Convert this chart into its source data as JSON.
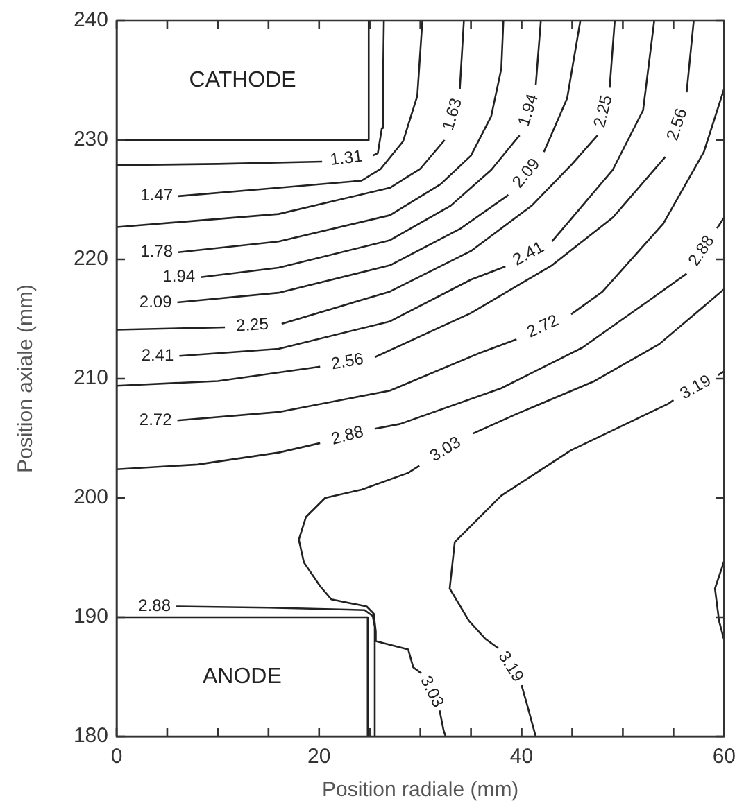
{
  "chart_data": {
    "type": "line",
    "xlabel": "Position radiale (mm)",
    "ylabel": "Position axiale (mm)",
    "xlim": [
      0,
      60
    ],
    "ylim": [
      180,
      240
    ],
    "xticks": [
      0,
      {
        "value": 5,
        "label": null
      },
      {
        "value": 10,
        "label": null
      },
      {
        "value": 15,
        "label": null
      },
      20,
      {
        "value": 25,
        "label": null
      },
      {
        "value": 30,
        "label": null
      },
      {
        "value": 35,
        "label": null
      },
      40,
      {
        "value": 45,
        "label": null
      },
      {
        "value": 50,
        "label": null
      },
      {
        "value": 55,
        "label": null
      },
      60
    ],
    "yticks": [
      180,
      190,
      200,
      210,
      220,
      230,
      240
    ],
    "series": [
      {
        "name": "CATHODE",
        "color": "#222222",
        "x": [
          0,
          24.9,
          24.9
        ],
        "values": [
          230,
          230,
          240
        ]
      },
      {
        "name": "ANODE",
        "color": "#222222",
        "x": [
          0,
          24.8,
          24.8
        ],
        "values": [
          190,
          190,
          180
        ]
      },
      {
        "name": "1.31",
        "color": "#222222",
        "x": [
          0,
          10,
          20.3,
          22.7,
          25.3,
          25.8,
          26.2,
          26.3,
          26.4
        ],
        "values": [
          227.9,
          228.0,
          228.2,
          null,
          228.7,
          228.9,
          231,
          234,
          240
        ]
      },
      {
        "name": "1.47",
        "color": "#222222",
        "x": [
          6.1,
          16,
          24.2,
          26.1,
          28.3,
          29.7,
          30.2
        ],
        "values": [
          225.3,
          226.0,
          226.6,
          227.6,
          229.9,
          233.7,
          240
        ]
      },
      {
        "name": "1.63",
        "color": "#222222",
        "x": [
          0,
          16,
          27,
          30,
          32.4,
          33.2,
          33.9,
          34.3
        ],
        "values": [
          222.7,
          223.8,
          226.0,
          227.6,
          230.0,
          null,
          234.3,
          240
        ]
      },
      {
        "name": "1.78",
        "color": "#222222",
        "x": [
          6.1,
          16,
          27,
          32,
          35,
          37,
          38,
          38.2
        ],
        "values": [
          220.6,
          221.5,
          223.7,
          226.3,
          228.7,
          232,
          236,
          240
        ]
      },
      {
        "name": "1.94",
        "color": "#222222",
        "x": [
          8.3,
          16,
          27,
          33,
          37,
          39.8,
          40.7,
          41.4,
          41.9
        ],
        "values": [
          218.5,
          219.3,
          221.6,
          224.5,
          227.5,
          230.4,
          null,
          234.6,
          240
        ]
      },
      {
        "name": "2.09",
        "color": "#222222",
        "x": [
          6,
          16,
          27,
          34,
          38.7,
          40.5,
          42.2,
          44.5,
          45.8
        ],
        "values": [
          216.4,
          217.2,
          219.5,
          222.6,
          225.4,
          null,
          229.0,
          233.5,
          240
        ]
      },
      {
        "name": "2.25",
        "color": "#222222",
        "x": [
          0,
          10.7,
          13.4,
          16.3,
          27,
          35,
          41,
          45,
          47.5,
          48.1,
          48.7,
          49.2
        ],
        "values": [
          214.1,
          214.3,
          null,
          214.6,
          217.3,
          220.7,
          224.5,
          228,
          230.4,
          null,
          234.4,
          240
        ]
      },
      {
        "name": "2.41",
        "color": "#222222",
        "x": [
          6.2,
          16,
          27,
          35,
          38.4,
          40.7,
          43.0,
          45,
          49,
          52,
          53.1
        ],
        "values": [
          211.9,
          212.5,
          214.8,
          218.3,
          219.4,
          null,
          221.5,
          223.5,
          227.5,
          232.5,
          240
        ]
      },
      {
        "name": "2.56",
        "color": "#222222",
        "x": [
          0,
          10,
          20.1,
          22.8,
          25.5,
          35,
          43,
          49,
          54.2,
          55.4,
          56.3,
          57
        ],
        "values": [
          209.4,
          209.8,
          211.0,
          null,
          211.8,
          215.5,
          219.5,
          223.5,
          228.6,
          null,
          234.0,
          240
        ]
      },
      {
        "name": "2.72",
        "color": "#222222",
        "x": [
          6,
          16,
          27,
          36,
          39.5,
          42.1,
          44.9,
          48,
          54,
          58,
          60
        ],
        "values": [
          206.5,
          207.2,
          209,
          212.2,
          213.3,
          null,
          215.4,
          217.3,
          223,
          229,
          234.3
        ]
      },
      {
        "name": "2.88",
        "color": "#222222",
        "x": [
          0,
          8,
          16,
          20.1,
          22.8,
          25.5,
          28,
          38,
          46,
          53,
          56.3,
          57.8,
          59.3,
          60
        ],
        "values": [
          202.4,
          202.8,
          203.8,
          204.6,
          null,
          205.8,
          206.2,
          209.2,
          212.6,
          216.8,
          218.8,
          null,
          222.6,
          223.5
        ]
      },
      {
        "name": "3.03",
        "color": "#222222",
        "x": [
          60,
          53.6,
          47.2,
          39.4,
          35.2,
          32.5,
          29.9,
          28.8,
          24.2,
          20.6,
          18.7,
          18.0,
          18.5,
          20.1,
          21.2,
          24.7,
          25.4,
          25.6,
          25.6,
          28.8,
          29.3,
          30.1,
          31.1,
          31.9,
          32.3,
          32.5
        ],
        "values": [
          217.5,
          212.9,
          209.8,
          207.0,
          205.4,
          null,
          202.7,
          202.1,
          200.7,
          200.0,
          198.4,
          196.5,
          194.6,
          192.6,
          191.5,
          190.9,
          190.3,
          188.8,
          188.0,
          187.3,
          185.8,
          185.3,
          null,
          182.2,
          180.5,
          180
        ]
      },
      {
        "name": "3.19",
        "color": "#222222",
        "x": [
          60,
          59.4,
          57.2,
          55.0,
          54.5,
          44.9,
          38.0,
          33.4,
          32.9,
          34.8,
          36.4,
          37.7,
          38.9,
          40.0,
          40.5,
          41.4
        ],
        "values": [
          210.6,
          210.3,
          null,
          208.2,
          207.9,
          204.0,
          200.2,
          196.3,
          192.4,
          189.7,
          188.2,
          187.4,
          null,
          184.3,
          182.8,
          180
        ]
      },
      {
        "color": "#222222",
        "x": [
          60,
          59.1,
          59.5,
          60
        ],
        "values": [
          194.7,
          192.4,
          189.7,
          188.1
        ]
      },
      {
        "name": "2.88",
        "color": "#222222",
        "x": [
          5.9,
          15,
          24.5,
          25.3,
          25.5,
          25.5
        ],
        "values": [
          190.9,
          190.8,
          190.6,
          190.1,
          189.2,
          180
        ]
      }
    ]
  }
}
